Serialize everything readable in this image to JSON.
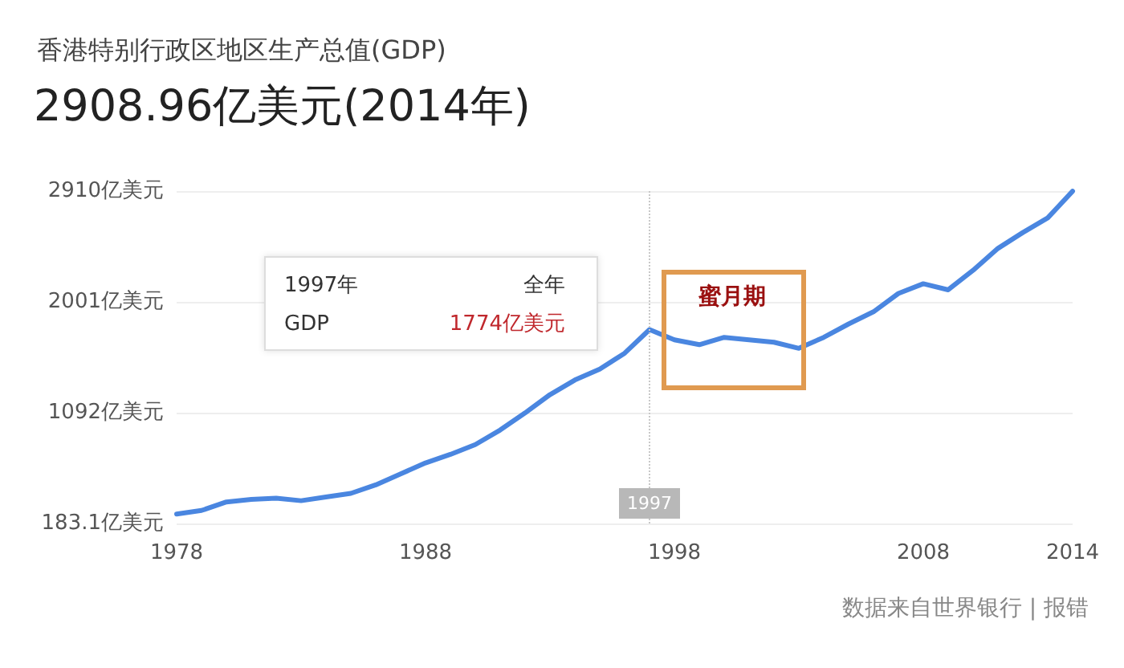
{
  "chart_data": {
    "type": "line",
    "title": "香港特别行政区地区生产总值(GDP)",
    "subtitle": "2908.96亿美元(2014年)",
    "x": [
      1978,
      1979,
      1980,
      1981,
      1982,
      1983,
      1984,
      1985,
      1986,
      1987,
      1988,
      1989,
      1990,
      1991,
      1992,
      1993,
      1994,
      1995,
      1996,
      1997,
      1998,
      1999,
      2000,
      2001,
      2002,
      2003,
      2004,
      2005,
      2006,
      2007,
      2008,
      2009,
      2010,
      2011,
      2012,
      2013,
      2014
    ],
    "series": [
      {
        "color": "#4a86e0",
        "values": [
          260,
          290,
          360,
          380,
          390,
          370,
          400,
          430,
          500,
          590,
          680,
          750,
          830,
          950,
          1090,
          1240,
          1360,
          1450,
          1580,
          1774,
          1690,
          1650,
          1710,
          1690,
          1670,
          1620,
          1710,
          1820,
          1920,
          2070,
          2150,
          2100,
          2260,
          2440,
          2570,
          2690,
          2909
        ]
      }
    ],
    "xlim": [
      1978,
      2014
    ],
    "xticks": [
      1978,
      1988,
      1998,
      2008,
      2014
    ],
    "ylim": [
      183.1,
      2910
    ],
    "yticks": [
      {
        "value": 183.1,
        "label": "183.1亿美元"
      },
      {
        "value": 1092,
        "label": "1092亿美元"
      },
      {
        "value": 2001,
        "label": "2001亿美元"
      },
      {
        "value": 2910,
        "label": "2910亿美元"
      }
    ],
    "grid": "y",
    "marker": "none",
    "line_style": "solid",
    "ref_lines": [
      {
        "axis": "x",
        "value": 1997,
        "label": "1997",
        "color": "#c8c8c8",
        "line_style": "dotted"
      }
    ],
    "annotations": [
      "1997年",
      "全年",
      "GDP",
      "1774亿美元",
      "蜜月期",
      "数据来自世界银行 | 报错"
    ]
  }
}
